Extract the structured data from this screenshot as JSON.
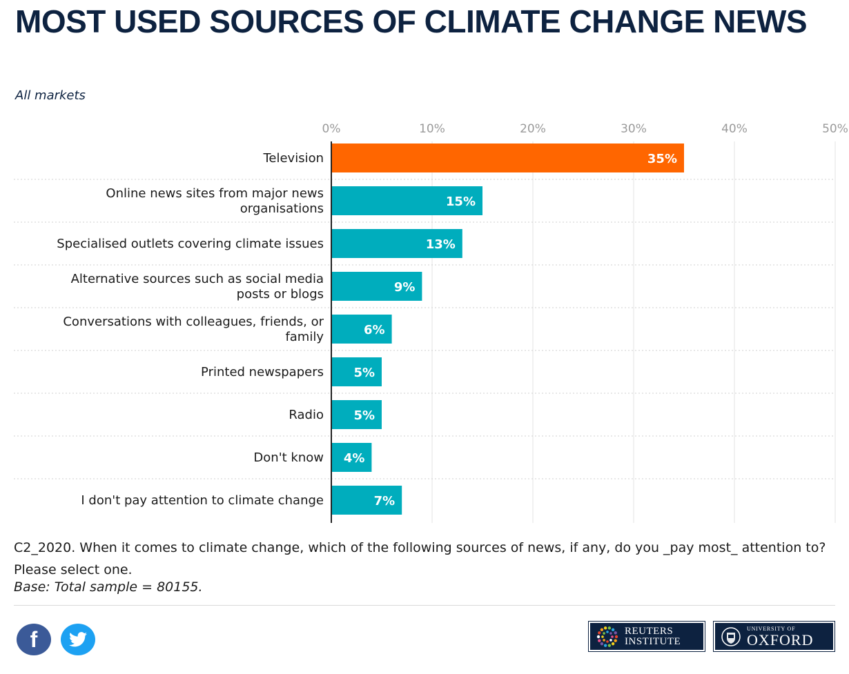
{
  "header": {
    "title": "MOST USED SOURCES OF CLIMATE CHANGE NEWS",
    "subtitle": "All markets"
  },
  "footnote": {
    "question": "C2_2020. When it comes to climate change, which of the following sources of news, if any, do you _pay most_ attention to? Please select one.",
    "base": "Base: Total sample = 80155."
  },
  "social": {
    "facebook_glyph": "f",
    "twitter_glyph": "t"
  },
  "logos": {
    "reuters": [
      "REUTERS",
      "INSTITUTE"
    ],
    "oxford": [
      "UNIVERSITY OF",
      "OXFORD"
    ]
  },
  "colors": {
    "highlight": "#ff6600",
    "bar": "#00adbd",
    "navy": "#0d2240"
  },
  "chart_data": {
    "type": "bar",
    "orientation": "horizontal",
    "title": "MOST USED SOURCES OF CLIMATE CHANGE NEWS",
    "subtitle": "All markets",
    "categories": [
      [
        "Television"
      ],
      [
        "Online news sites from major news",
        "organisations"
      ],
      [
        "Specialised outlets covering climate issues"
      ],
      [
        "Alternative sources such as social media",
        "posts or blogs"
      ],
      [
        "Conversations with colleagues, friends, or",
        "family"
      ],
      [
        "Printed newspapers"
      ],
      [
        "Radio"
      ],
      [
        "Don't know"
      ],
      [
        "I don't pay attention to climate change"
      ]
    ],
    "values": [
      35,
      15,
      13,
      9,
      6,
      5,
      5,
      4,
      7
    ],
    "value_labels": [
      "35%",
      "15%",
      "13%",
      "9%",
      "6%",
      "5%",
      "5%",
      "4%",
      "7%"
    ],
    "highlight_index": 0,
    "xticks": [
      0,
      10,
      20,
      30,
      40,
      50
    ],
    "xtick_labels": [
      "0%",
      "10%",
      "20%",
      "30%",
      "40%",
      "50%"
    ],
    "xlim": [
      0,
      50
    ],
    "axis_position": "top",
    "grid": true,
    "legend": "none"
  }
}
